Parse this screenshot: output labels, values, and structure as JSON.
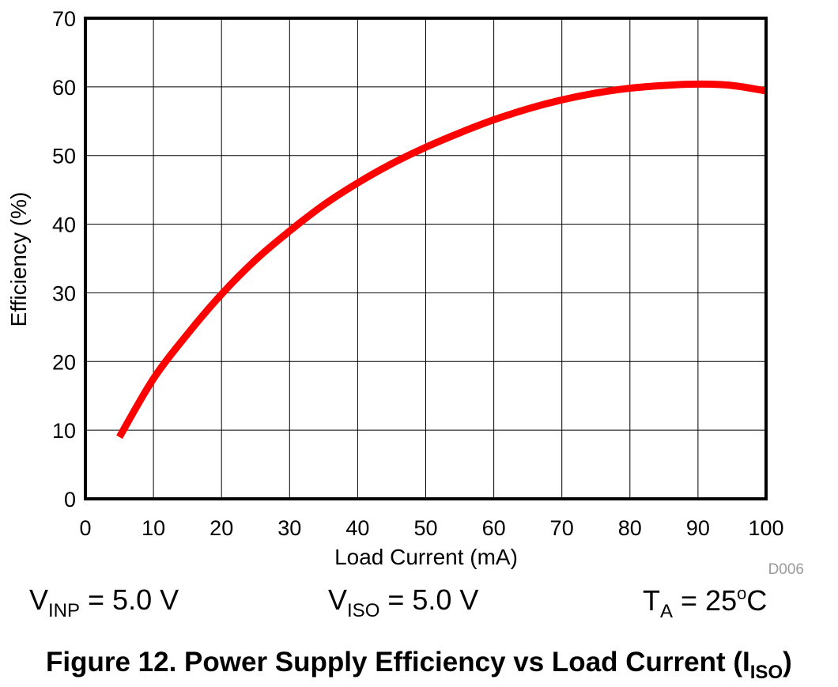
{
  "chart_data": {
    "type": "line",
    "xlabel": "Load Current (mA)",
    "ylabel": "Efficiency (%)",
    "xlim": [
      0,
      100
    ],
    "ylim": [
      0,
      70
    ],
    "xticks": [
      "0",
      "10",
      "20",
      "30",
      "40",
      "50",
      "60",
      "70",
      "80",
      "90",
      "100"
    ],
    "yticks": [
      "0",
      "10",
      "20",
      "30",
      "40",
      "50",
      "60",
      "70"
    ],
    "grid": true,
    "line_color": "#ff0000",
    "series": [
      {
        "x": [
          5,
          10,
          15,
          20,
          25,
          30,
          35,
          40,
          45,
          50,
          55,
          60,
          65,
          70,
          75,
          80,
          85,
          90,
          95,
          100
        ],
        "y": [
          9,
          17.5,
          24,
          29.8,
          34.8,
          39,
          42.8,
          46,
          48.8,
          51.2,
          53.3,
          55.2,
          56.8,
          58.1,
          59.1,
          59.8,
          60.2,
          60.4,
          60.2,
          59.4
        ]
      }
    ],
    "figure_code": "D006"
  },
  "conditions": {
    "vinp": {
      "symbol": "V",
      "subscript": "INP",
      "value": " = 5.0 V"
    },
    "viso": {
      "symbol": "V",
      "subscript": "ISO",
      "value": " = 5.0 V"
    },
    "ta": {
      "symbol": "T",
      "subscript": "A",
      "value_pre": " = 25",
      "superscript": "o",
      "value_post": "C"
    }
  },
  "caption": {
    "text": "Figure 12. Power Supply Efficiency vs Load Current (I",
    "subscript": "ISO",
    "close": ")"
  }
}
